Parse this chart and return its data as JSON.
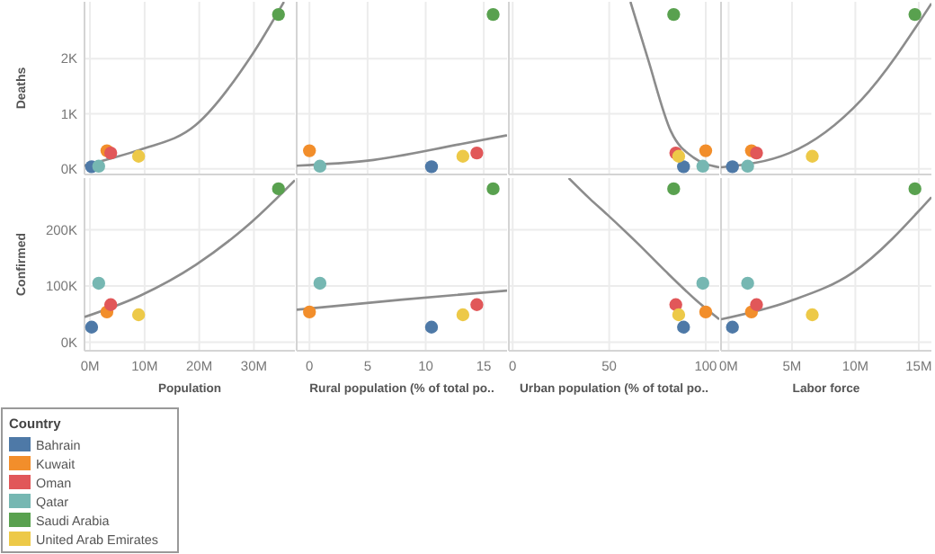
{
  "chart_data": [
    {
      "type": "scatter",
      "ylabel": "Deaths",
      "xlim": [
        -1000000,
        37500000
      ],
      "xticks": [
        {
          "value": 0,
          "label": null
        },
        {
          "value": 10000000,
          "label": null
        },
        {
          "value": 20000000,
          "label": null
        },
        {
          "value": 30000000,
          "label": null
        }
      ],
      "ylim": [
        -100,
        3030
      ],
      "yticks": [
        {
          "value": 0,
          "label": "0K"
        },
        {
          "value": 1000,
          "label": "1K"
        },
        {
          "value": 2000,
          "label": "2K"
        }
      ],
      "grid": true,
      "tick_labels": "y",
      "marker": "circle",
      "series": [
        {
          "color": "#4e79a7",
          "x": [
            300000
          ],
          "values": [
            40
          ]
        },
        {
          "color": "#f28e2b",
          "x": [
            3100000
          ],
          "values": [
            330
          ]
        },
        {
          "color": "#e15759",
          "x": [
            3800000
          ],
          "values": [
            290
          ]
        },
        {
          "color": "#76b7b2",
          "x": [
            1600000
          ],
          "values": [
            50
          ]
        },
        {
          "color": "#59a14f",
          "x": [
            34500000
          ],
          "values": [
            2800
          ]
        },
        {
          "color": "#edc948",
          "x": [
            8900000
          ],
          "values": [
            230
          ]
        },
        {
          "type": "line",
          "marker": "none",
          "color": "#8c8c8c",
          "x": [
            -1000000,
            3800000,
            9200000,
            19400000,
            29600000,
            35500000
          ],
          "values": [
            60,
            190,
            350,
            800,
            2060,
            3030
          ]
        }
      ]
    },
    {
      "type": "scatter",
      "xlim": [
        -1.1,
        17
      ],
      "xticks": [
        {
          "value": 0,
          "label": null
        },
        {
          "value": 5,
          "label": null
        },
        {
          "value": 10,
          "label": null
        },
        {
          "value": 15,
          "label": null
        }
      ],
      "ylim": [
        -100,
        3030
      ],
      "yticks": [
        {
          "value": 0,
          "label": null
        },
        {
          "value": 1000,
          "label": null
        },
        {
          "value": 2000,
          "label": null
        }
      ],
      "grid": true,
      "tick_labels": false,
      "marker": "circle",
      "series": [
        {
          "color": "#4e79a7",
          "x": [
            10.5
          ],
          "values": [
            40
          ]
        },
        {
          "color": "#f28e2b",
          "x": [
            0
          ],
          "values": [
            330
          ]
        },
        {
          "color": "#e15759",
          "x": [
            14.4
          ],
          "values": [
            290
          ]
        },
        {
          "color": "#76b7b2",
          "x": [
            0.9
          ],
          "values": [
            50
          ]
        },
        {
          "color": "#59a14f",
          "x": [
            15.8
          ],
          "values": [
            2800
          ]
        },
        {
          "color": "#edc948",
          "x": [
            13.2
          ],
          "values": [
            230
          ]
        },
        {
          "type": "line",
          "marker": "none",
          "color": "#8c8c8c",
          "x": [
            -1.1,
            5,
            13,
            17
          ],
          "values": [
            60,
            150,
            450,
            610
          ]
        }
      ]
    },
    {
      "type": "scatter",
      "xlim": [
        -2,
        107
      ],
      "xticks": [
        {
          "value": 0,
          "label": null
        },
        {
          "value": 50,
          "label": null
        },
        {
          "value": 100,
          "label": null
        }
      ],
      "ylim": [
        -100,
        3030
      ],
      "yticks": [
        {
          "value": 0,
          "label": null
        },
        {
          "value": 1000,
          "label": null
        },
        {
          "value": 2000,
          "label": null
        }
      ],
      "grid": true,
      "tick_labels": false,
      "marker": "circle",
      "series": [
        {
          "color": "#4e79a7",
          "x": [
            88.5
          ],
          "values": [
            40
          ]
        },
        {
          "color": "#f28e2b",
          "x": [
            100
          ],
          "values": [
            330
          ]
        },
        {
          "color": "#e15759",
          "x": [
            84.5
          ],
          "values": [
            290
          ]
        },
        {
          "color": "#76b7b2",
          "x": [
            98.5
          ],
          "values": [
            50
          ]
        },
        {
          "color": "#59a14f",
          "x": [
            83.4
          ],
          "values": [
            2800
          ]
        },
        {
          "color": "#edc948",
          "x": [
            86
          ],
          "values": [
            230
          ]
        },
        {
          "type": "line",
          "marker": "none",
          "color": "#8c8c8c",
          "x": [
            61,
            70,
            82,
            94,
            107
          ],
          "values": [
            3030,
            2000,
            680,
            200,
            30
          ]
        }
      ]
    },
    {
      "type": "scatter",
      "xlim": [
        -600000,
        16000000
      ],
      "xticks": [
        {
          "value": 0,
          "label": null
        },
        {
          "value": 5000000,
          "label": null
        },
        {
          "value": 10000000,
          "label": null
        },
        {
          "value": 15000000,
          "label": null
        }
      ],
      "ylim": [
        -100,
        3030
      ],
      "yticks": [
        {
          "value": 0,
          "label": null
        },
        {
          "value": 1000,
          "label": null
        },
        {
          "value": 2000,
          "label": null
        }
      ],
      "grid": true,
      "tick_labels": false,
      "marker": "circle",
      "series": [
        {
          "color": "#4e79a7",
          "x": [
            300000
          ],
          "values": [
            40
          ]
        },
        {
          "color": "#f28e2b",
          "x": [
            1800000
          ],
          "values": [
            330
          ]
        },
        {
          "color": "#e15759",
          "x": [
            2200000
          ],
          "values": [
            290
          ]
        },
        {
          "color": "#76b7b2",
          "x": [
            1500000
          ],
          "values": [
            50
          ]
        },
        {
          "color": "#59a14f",
          "x": [
            14700000
          ],
          "values": [
            2800
          ]
        },
        {
          "color": "#edc948",
          "x": [
            6600000
          ],
          "values": [
            230
          ]
        },
        {
          "type": "line",
          "marker": "none",
          "color": "#8c8c8c",
          "x": [
            -600000,
            4800000,
            10500000,
            16000000
          ],
          "values": [
            30,
            290,
            1260,
            3000
          ]
        }
      ]
    },
    {
      "type": "scatter",
      "xlabel": "Population",
      "ylabel": "Confirmed",
      "legend_title": "Country",
      "legend": "bottom left",
      "xlim": [
        -1000000,
        37500000
      ],
      "xticks": [
        {
          "value": 0,
          "label": "0M"
        },
        {
          "value": 10000000,
          "label": "10M"
        },
        {
          "value": 20000000,
          "label": "20M"
        },
        {
          "value": 30000000,
          "label": "30M"
        }
      ],
      "ylim": [
        -15000,
        292000
      ],
      "yticks": [
        {
          "value": 0,
          "label": "0K"
        },
        {
          "value": 100000,
          "label": "100K"
        },
        {
          "value": 200000,
          "label": "200K"
        }
      ],
      "grid": true,
      "marker": "circle",
      "series": [
        {
          "name": "Bahrain",
          "color": "#4e79a7",
          "x": [
            300000
          ],
          "values": [
            27000
          ]
        },
        {
          "name": "Kuwait",
          "color": "#f28e2b",
          "x": [
            3100000
          ],
          "values": [
            54000
          ]
        },
        {
          "name": "Oman",
          "color": "#e15759",
          "x": [
            3800000
          ],
          "values": [
            67000
          ]
        },
        {
          "name": "Qatar",
          "color": "#76b7b2",
          "x": [
            1600000
          ],
          "values": [
            105000
          ]
        },
        {
          "name": "Saudi Arabia",
          "color": "#59a14f",
          "x": [
            34500000
          ],
          "values": [
            273000
          ]
        },
        {
          "name": "United Arab Emirates",
          "color": "#edc948",
          "x": [
            8900000
          ],
          "values": [
            49000
          ]
        },
        {
          "type": "line",
          "marker": "none",
          "color": "#8c8c8c",
          "x": [
            -1000000,
            9200000,
            19400000,
            29600000,
            37500000
          ],
          "values": [
            45000,
            83000,
            138000,
            214000,
            288000
          ]
        }
      ]
    },
    {
      "type": "scatter",
      "xlabel": "Rural population (% of total po..",
      "xlim": [
        -1.1,
        17
      ],
      "xticks": [
        0,
        5,
        10,
        15
      ],
      "ylim": [
        -15000,
        292000
      ],
      "yticks": [
        {
          "value": 0,
          "label": null
        },
        {
          "value": 100000,
          "label": null
        },
        {
          "value": 200000,
          "label": null
        }
      ],
      "grid": true,
      "tick_labels": "x",
      "marker": "circle",
      "series": [
        {
          "color": "#4e79a7",
          "x": [
            10.5
          ],
          "values": [
            27000
          ]
        },
        {
          "color": "#f28e2b",
          "x": [
            0
          ],
          "values": [
            54000
          ]
        },
        {
          "color": "#e15759",
          "x": [
            14.4
          ],
          "values": [
            67000
          ]
        },
        {
          "color": "#76b7b2",
          "x": [
            0.9
          ],
          "values": [
            105000
          ]
        },
        {
          "color": "#59a14f",
          "x": [
            15.8
          ],
          "values": [
            273000
          ]
        },
        {
          "color": "#edc948",
          "x": [
            13.2
          ],
          "values": [
            49000
          ]
        },
        {
          "type": "line",
          "marker": "none",
          "color": "#8c8c8c",
          "x": [
            -1.1,
            8,
            17
          ],
          "values": [
            58000,
            76000,
            92000
          ]
        }
      ]
    },
    {
      "type": "scatter",
      "xlabel": "Urban population (% of total po..",
      "xlim": [
        -2,
        107
      ],
      "xticks": [
        0,
        50,
        100
      ],
      "ylim": [
        -15000,
        292000
      ],
      "yticks": [
        {
          "value": 0,
          "label": null
        },
        {
          "value": 100000,
          "label": null
        },
        {
          "value": 200000,
          "label": null
        }
      ],
      "grid": true,
      "tick_labels": "x",
      "marker": "circle",
      "series": [
        {
          "color": "#4e79a7",
          "x": [
            88.5
          ],
          "values": [
            27000
          ]
        },
        {
          "color": "#f28e2b",
          "x": [
            100
          ],
          "values": [
            54000
          ]
        },
        {
          "color": "#e15759",
          "x": [
            84.5
          ],
          "values": [
            67000
          ]
        },
        {
          "color": "#76b7b2",
          "x": [
            98.5
          ],
          "values": [
            105000
          ]
        },
        {
          "color": "#59a14f",
          "x": [
            83.4
          ],
          "values": [
            273000
          ]
        },
        {
          "color": "#edc948",
          "x": [
            86
          ],
          "values": [
            49000
          ]
        },
        {
          "type": "line",
          "marker": "none",
          "color": "#8c8c8c",
          "x": [
            29,
            40,
            49,
            65,
            79,
            95,
            107
          ],
          "values": [
            292000,
            255000,
            227000,
            175000,
            127000,
            75000,
            41000
          ]
        }
      ]
    },
    {
      "type": "scatter",
      "xlabel": "Labor force",
      "xlim": [
        -600000,
        16000000
      ],
      "xticks": [
        {
          "value": 0,
          "label": "0M"
        },
        {
          "value": 5000000,
          "label": "5M"
        },
        {
          "value": 10000000,
          "label": "10M"
        },
        {
          "value": 15000000,
          "label": "15M"
        }
      ],
      "ylim": [
        -15000,
        292000
      ],
      "yticks": [
        {
          "value": 0,
          "label": null
        },
        {
          "value": 100000,
          "label": null
        },
        {
          "value": 200000,
          "label": null
        }
      ],
      "grid": true,
      "tick_labels": "x",
      "marker": "circle",
      "series": [
        {
          "color": "#4e79a7",
          "x": [
            300000
          ],
          "values": [
            27000
          ]
        },
        {
          "color": "#f28e2b",
          "x": [
            1800000
          ],
          "values": [
            54000
          ]
        },
        {
          "color": "#e15759",
          "x": [
            2200000
          ],
          "values": [
            67000
          ]
        },
        {
          "color": "#76b7b2",
          "x": [
            1500000
          ],
          "values": [
            105000
          ]
        },
        {
          "color": "#59a14f",
          "x": [
            14700000
          ],
          "values": [
            273000
          ]
        },
        {
          "color": "#edc948",
          "x": [
            6600000
          ],
          "values": [
            49000
          ]
        },
        {
          "type": "line",
          "marker": "none",
          "color": "#8c8c8c",
          "x": [
            -600000,
            4800000,
            9800000,
            16000000
          ],
          "values": [
            41000,
            73000,
            124000,
            258000
          ]
        }
      ]
    }
  ]
}
